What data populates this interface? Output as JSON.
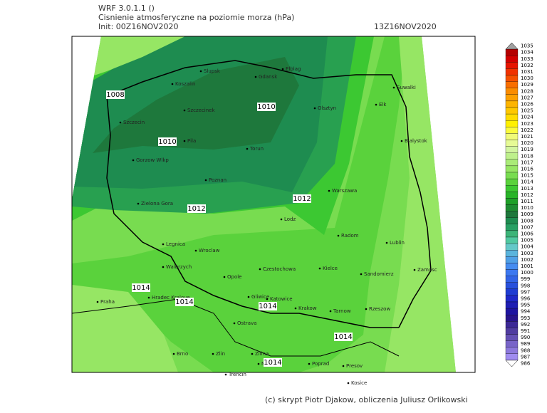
{
  "header": {
    "model": "WRF 3.0.1.1 ()",
    "title": "Cisnienie atmosferyczne na poziomie morza (hPa)",
    "init": "Init: 00Z16NOV2020",
    "valid": "13Z16NOV2020"
  },
  "cities": [
    "Slupsk",
    "Koszalin",
    "Gdansk",
    "Elblag",
    "Olsztyn",
    "Elk",
    "Suwalki",
    "Szczecinek",
    "Szczecin",
    "Pila",
    "Torun",
    "Bialystok",
    "Gorzow Wlkp",
    "Poznan",
    "Warszawa",
    "Zielona Gora",
    "Lodz",
    "Radom",
    "Lublin",
    "Legnica",
    "Wroclaw",
    "Walbrzych",
    "Opole",
    "Czestochowa",
    "Kielce",
    "Sandomierz",
    "Zamosc",
    "Praha",
    "Hradec Kralove",
    "Gliwice",
    "Katowice",
    "Krakow",
    "Tarnow",
    "Rzeszow",
    "Ostrava",
    "Brno",
    "Zlin",
    "Zilina",
    "Martin",
    "Poprad",
    "Presov",
    "Trencin",
    "Kosice"
  ],
  "isobar_labels": [
    1008,
    1010,
    1010,
    1012,
    1012,
    1014,
    1014,
    1014,
    1014,
    1014
  ],
  "colorbar": [
    {
      "value": 1035,
      "color": "#a0a0a0"
    },
    {
      "value": 1034,
      "color": "#b40000"
    },
    {
      "value": 1033,
      "color": "#d20000"
    },
    {
      "value": 1032,
      "color": "#e61400"
    },
    {
      "value": 1031,
      "color": "#f03200"
    },
    {
      "value": 1030,
      "color": "#f55000"
    },
    {
      "value": 1029,
      "color": "#f86e00"
    },
    {
      "value": 1028,
      "color": "#fa8c00"
    },
    {
      "value": 1027,
      "color": "#fca000"
    },
    {
      "value": 1026,
      "color": "#fdb400"
    },
    {
      "value": 1025,
      "color": "#fec800"
    },
    {
      "value": 1024,
      "color": "#ffdc00"
    },
    {
      "value": 1023,
      "color": "#fff000"
    },
    {
      "value": 1022,
      "color": "#fafa3c"
    },
    {
      "value": 1021,
      "color": "#f0fa78"
    },
    {
      "value": 1020,
      "color": "#e6fa96"
    },
    {
      "value": 1019,
      "color": "#d2f5a0"
    },
    {
      "value": 1018,
      "color": "#bef08c"
    },
    {
      "value": 1017,
      "color": "#aaeb78"
    },
    {
      "value": 1016,
      "color": "#96e664"
    },
    {
      "value": 1015,
      "color": "#78dc50"
    },
    {
      "value": 1014,
      "color": "#5ad23c"
    },
    {
      "value": 1013,
      "color": "#3cc832"
    },
    {
      "value": 1012,
      "color": "#28b428"
    },
    {
      "value": 1011,
      "color": "#1ea028"
    },
    {
      "value": 1010,
      "color": "#1e8c32"
    },
    {
      "value": 1009,
      "color": "#1e783c"
    },
    {
      "value": 1008,
      "color": "#1e8c50"
    },
    {
      "value": 1007,
      "color": "#28a064"
    },
    {
      "value": 1006,
      "color": "#3cb478"
    },
    {
      "value": 1005,
      "color": "#50c8a0"
    },
    {
      "value": 1004,
      "color": "#64c8c8"
    },
    {
      "value": 1003,
      "color": "#5ab4dc"
    },
    {
      "value": 1002,
      "color": "#50a0e6"
    },
    {
      "value": 1001,
      "color": "#468cf0"
    },
    {
      "value": 1000,
      "color": "#3c78f0"
    },
    {
      "value": 999,
      "color": "#3264e6"
    },
    {
      "value": 998,
      "color": "#2850dc"
    },
    {
      "value": 997,
      "color": "#1e3cd2"
    },
    {
      "value": 996,
      "color": "#1e28c8"
    },
    {
      "value": 995,
      "color": "#1e1eb4"
    },
    {
      "value": 994,
      "color": "#1e14a0"
    },
    {
      "value": 993,
      "color": "#28148c"
    },
    {
      "value": 992,
      "color": "#3c2896"
    },
    {
      "value": 991,
      "color": "#503ca0"
    },
    {
      "value": 990,
      "color": "#6450b4"
    },
    {
      "value": 989,
      "color": "#7864c8"
    },
    {
      "value": 988,
      "color": "#8c78dc"
    },
    {
      "value": 987,
      "color": "#a08cf0"
    },
    {
      "value": 986,
      "color": "#ffffff"
    }
  ],
  "footer": "(c) skrypt Piotr Djakow, obliczenia Juliusz Orlikowski"
}
